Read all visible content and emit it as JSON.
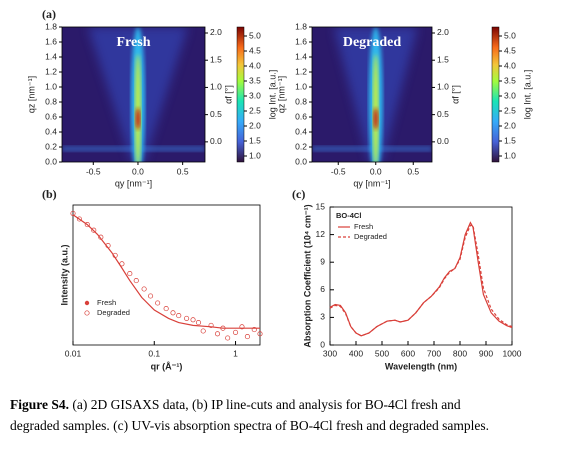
{
  "chart_data": [
    {
      "type": "heatmap",
      "panel_label": "(a)",
      "title": "Fresh",
      "xlabel": "qy [nm⁻¹]",
      "ylabel": "qz [nm⁻¹]",
      "y2label": "αf [°]",
      "colorbar_label": "log Int. [a.u.]",
      "xlim": [
        -0.85,
        0.75
      ],
      "xticks": [
        -0.5,
        {
          "value": 0,
          "label": "0.0"
        },
        0.5
      ],
      "ylim": [
        0,
        1.8
      ],
      "yticks": [
        {
          "value": 0,
          "label": "0.0"
        },
        0.2,
        0.4,
        0.6,
        0.8,
        {
          "value": 1,
          "label": "1.0"
        },
        1.2,
        1.4,
        1.6,
        1.8
      ],
      "y2lim": [
        -0.37,
        2.11
      ],
      "y2ticks": [
        {
          "value": 0,
          "label": "0.0"
        },
        0.5,
        {
          "value": 1,
          "label": "1.0"
        },
        1.5,
        {
          "value": 2,
          "label": "2.0"
        }
      ],
      "clim": [
        0.8,
        5.3
      ],
      "cticks": [
        {
          "value": 1,
          "label": "1.0"
        },
        1.5,
        {
          "value": 2,
          "label": "2.0"
        },
        2.5,
        {
          "value": 3,
          "label": "3.0"
        },
        3.5,
        {
          "value": 4,
          "label": "4.0"
        },
        4.5,
        {
          "value": 5,
          "label": "5.0"
        }
      ]
    },
    {
      "type": "heatmap",
      "title": "Degraded",
      "xlabel": "qy [nm⁻¹]",
      "ylabel": "qz [nm⁻¹]",
      "y2label": "αf [°]",
      "colorbar_label": "log Int. [a.u.]",
      "xlim": [
        -0.85,
        0.75
      ],
      "xticks": [
        -0.5,
        {
          "value": 0,
          "label": "0.0"
        },
        0.5
      ],
      "ylim": [
        0,
        1.8
      ],
      "yticks": [
        {
          "value": 0,
          "label": "0.0"
        },
        0.2,
        0.4,
        0.6,
        0.8,
        {
          "value": 1,
          "label": "1.0"
        },
        1.2,
        1.4,
        1.6,
        1.8
      ],
      "y2lim": [
        -0.37,
        2.11
      ],
      "y2ticks": [
        {
          "value": 0,
          "label": "0.0"
        },
        0.5,
        {
          "value": 1,
          "label": "1.0"
        },
        1.5,
        {
          "value": 2,
          "label": "2.0"
        }
      ],
      "clim": [
        0.8,
        5.3
      ],
      "cticks": [
        {
          "value": 1,
          "label": "1.0"
        },
        1.5,
        {
          "value": 2,
          "label": "2.0"
        },
        2.5,
        {
          "value": 3,
          "label": "3.0"
        },
        3.5,
        {
          "value": 4,
          "label": "4.0"
        },
        4.5,
        {
          "value": 5,
          "label": "5.0"
        }
      ]
    },
    {
      "type": "line",
      "panel_label": "(b)",
      "xlabel": "qr (Å⁻¹)",
      "ylabel": "Intensity (a.u.)",
      "xlog": true,
      "xlim": [
        0.01,
        2
      ],
      "xticks": [
        0.01,
        0.1,
        1
      ],
      "ylim": [
        0,
        100
      ],
      "legend": "lower left",
      "series": [
        {
          "name": "Fresh",
          "color": "#d9403a",
          "style": "line",
          "x": [
            0.01,
            0.015,
            0.02,
            0.03,
            0.04,
            0.05,
            0.07,
            0.1,
            0.15,
            0.2,
            0.3,
            0.5,
            0.7,
            1,
            1.5,
            2
          ],
          "values": [
            93,
            86,
            79,
            66,
            55,
            46,
            34,
            25,
            19,
            16,
            14,
            13,
            12,
            12,
            12,
            12
          ]
        },
        {
          "name": "Degraded",
          "color": "#d9403a",
          "style": "marker",
          "x": [
            0.01,
            0.012,
            0.015,
            0.018,
            0.022,
            0.027,
            0.033,
            0.04,
            0.05,
            0.06,
            0.075,
            0.09,
            0.11,
            0.14,
            0.17,
            0.2,
            0.25,
            0.3,
            0.35,
            0.4,
            0.5,
            0.6,
            0.7,
            0.8,
            1,
            1.2,
            1.4,
            1.7,
            2
          ],
          "values": [
            94,
            90,
            86,
            82,
            77,
            71,
            64,
            58,
            51,
            46,
            40,
            35,
            30,
            26,
            23,
            21,
            19,
            18,
            16,
            10,
            14,
            8,
            12,
            5,
            9,
            13,
            6,
            11,
            8
          ]
        }
      ]
    },
    {
      "type": "line",
      "panel_label": "(c)",
      "title": "BO-4Cl",
      "xlabel": "Wavelength (nm)",
      "ylabel": "Absorption Coefficient (10⁴ cm⁻¹)",
      "xlim": [
        300,
        1000
      ],
      "xticks": [
        300,
        400,
        500,
        600,
        700,
        800,
        900,
        1000
      ],
      "ylim": [
        0,
        15
      ],
      "yticks": [
        0,
        3,
        6,
        9,
        12,
        15
      ],
      "legend": "upper left",
      "x": [
        300,
        320,
        340,
        360,
        380,
        400,
        420,
        450,
        480,
        520,
        550,
        570,
        600,
        630,
        660,
        690,
        720,
        740,
        760,
        780,
        800,
        820,
        840,
        850,
        870,
        890,
        920,
        950,
        980,
        1000
      ],
      "series": [
        {
          "name": "Fresh",
          "color": "#d9403a",
          "style": "line",
          "values": [
            4.1,
            4.4,
            4.3,
            3.5,
            2.0,
            1.3,
            1.0,
            1.3,
            2.0,
            2.6,
            2.7,
            2.5,
            2.7,
            3.5,
            4.6,
            5.3,
            6.3,
            7.3,
            8.0,
            8.3,
            9.5,
            12.0,
            13.3,
            12.8,
            9.0,
            5.5,
            3.5,
            2.6,
            2.1,
            1.9
          ]
        },
        {
          "name": "Degraded",
          "color": "#d9403a",
          "style": "dashed",
          "values": [
            4.0,
            4.3,
            4.2,
            3.4,
            2.0,
            1.3,
            1.0,
            1.3,
            2.0,
            2.6,
            2.7,
            2.5,
            2.7,
            3.5,
            4.6,
            5.3,
            6.2,
            7.2,
            7.9,
            8.3,
            9.3,
            11.7,
            13.0,
            13.0,
            9.8,
            6.2,
            3.9,
            2.8,
            2.2,
            2.0
          ]
        }
      ]
    }
  ],
  "caption": {
    "label": "Figure S4.",
    "lines": [
      " (a) 2D GISAXS data, (b) IP line-cuts and analysis for BO-4Cl fresh and",
      "degraded samples. (c) UV-vis absorption spectra of BO-4Cl fresh and degraded samples."
    ]
  }
}
